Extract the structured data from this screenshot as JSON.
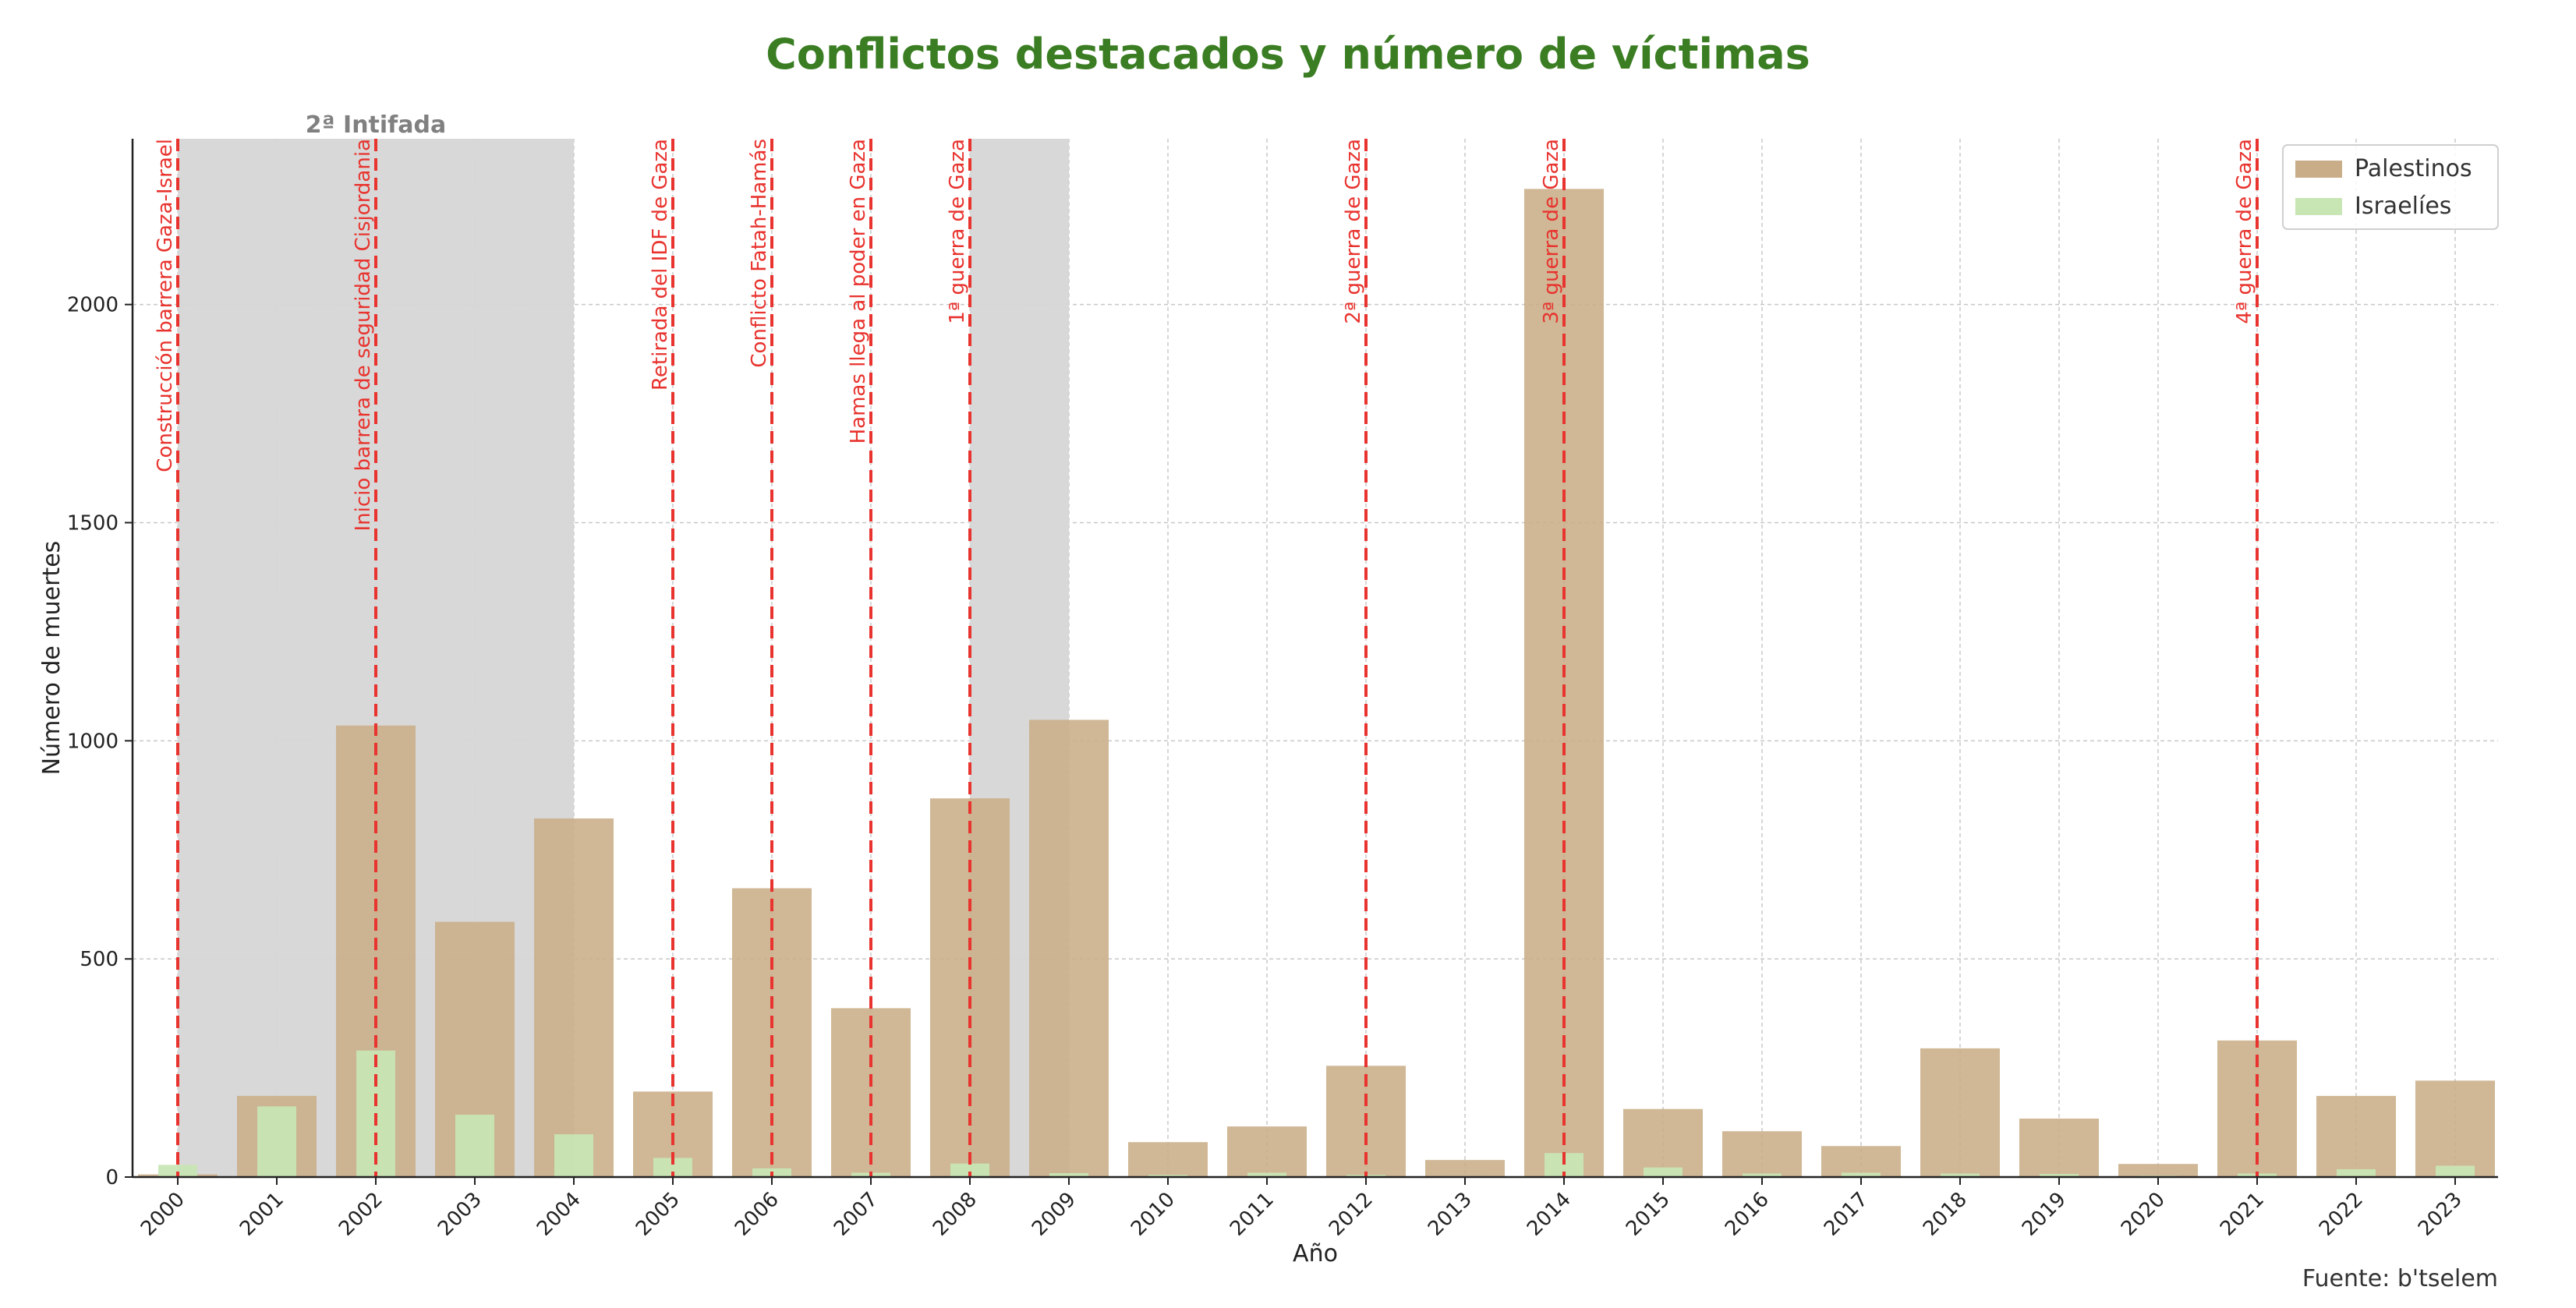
{
  "chart_data": {
    "type": "bar",
    "title": "Conflictos destacados y número de víctimas",
    "xlabel": "Año",
    "ylabel": "Número de muertes",
    "ylim": [
      0,
      2380
    ],
    "yticks": [
      0,
      500,
      1000,
      1500,
      2000
    ],
    "grid": true,
    "legend_position": "top-right",
    "categories": [
      "2000",
      "2001",
      "2002",
      "2003",
      "2004",
      "2005",
      "2006",
      "2007",
      "2008",
      "2009",
      "2010",
      "2011",
      "2012",
      "2013",
      "2014",
      "2015",
      "2016",
      "2017",
      "2018",
      "2019",
      "2020",
      "2021",
      "2022",
      "2023"
    ],
    "series": [
      {
        "name": "Palestinos",
        "color": "#c9ad88",
        "values": [
          6,
          186,
          1035,
          585,
          822,
          196,
          662,
          387,
          868,
          1048,
          80,
          116,
          255,
          39,
          2265,
          156,
          105,
          71,
          295,
          134,
          30,
          313,
          186,
          221
        ]
      },
      {
        "name": "Israelíes",
        "color": "#c8e6b4",
        "values": [
          28,
          162,
          290,
          143,
          98,
          44,
          20,
          10,
          31,
          9,
          5,
          10,
          5,
          2,
          55,
          22,
          8,
          10,
          8,
          7,
          3,
          8,
          18,
          26
        ]
      }
    ],
    "shaded_periods": [
      {
        "start": "2000",
        "end": "2004",
        "label": "2ª Intifada"
      },
      {
        "start": "2008",
        "end": "2009",
        "label": ""
      }
    ],
    "events": [
      {
        "year": "2000",
        "label": "Construcción barrera Gaza-Israel"
      },
      {
        "year": "2002",
        "label": "Inicio barrera de seguridad Cisjordania"
      },
      {
        "year": "2005",
        "label": "Retirada del IDF de Gaza"
      },
      {
        "year": "2006",
        "label": "Conflicto Fatah-Hamás"
      },
      {
        "year": "2007",
        "label": "Hamas llega al poder en Gaza"
      },
      {
        "year": "2008",
        "label": "1ª guerra de Gaza"
      },
      {
        "year": "2012",
        "label": "2ª guerra de Gaza"
      },
      {
        "year": "2014",
        "label": "3ª guerra de Gaza"
      },
      {
        "year": "2021",
        "label": "4ª guerra de Gaza"
      }
    ],
    "event_color": "#e8332e",
    "shade_color": "#d6d6d6",
    "source": "Fuente: b'tselem"
  }
}
